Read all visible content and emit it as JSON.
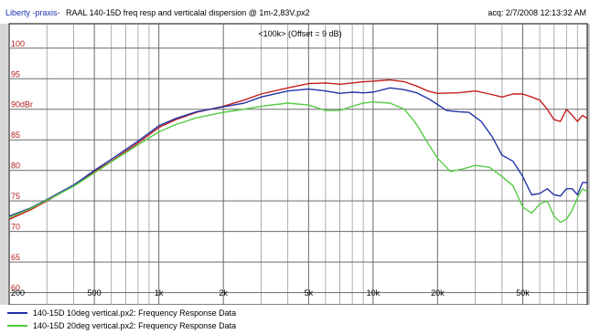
{
  "header": {
    "app_name": "Liberty -praxis-",
    "file_title": "RAAL 140-15D freq resp and verticalal dispersion @ 1m-2,83V.px2",
    "acq_time": "acq: 2/7/2008 12:13:32 AM"
  },
  "chart_data": {
    "type": "line",
    "title": "",
    "annotation": "<100k> (Offset = 9 dB)",
    "xlabel": "",
    "ylabel": "dBr",
    "x_scale": "log",
    "xlim": [
      200,
      100000
    ],
    "ylim": [
      58,
      104
    ],
    "grid": true,
    "x_ticks": [
      {
        "value": 200,
        "label": "200"
      },
      {
        "value": 500,
        "label": "500"
      },
      {
        "value": 1000,
        "label": "1k"
      },
      {
        "value": 2000,
        "label": "2k"
      },
      {
        "value": 5000,
        "label": "5k"
      },
      {
        "value": 10000,
        "label": "10k"
      },
      {
        "value": 20000,
        "label": "20k"
      },
      {
        "value": 50000,
        "label": "50k"
      }
    ],
    "y_ticks": [
      {
        "value": 100,
        "label": "100"
      },
      {
        "value": 95,
        "label": "95"
      },
      {
        "value": 90,
        "label": "90dBr"
      },
      {
        "value": 85,
        "label": "85"
      },
      {
        "value": 80,
        "label": "80"
      },
      {
        "value": 75,
        "label": "75"
      },
      {
        "value": 70,
        "label": "70"
      },
      {
        "value": 65,
        "label": "65"
      },
      {
        "value": 60,
        "label": "60"
      }
    ],
    "series": [
      {
        "color": "#c41d1d",
        "points": [
          [
            200,
            72
          ],
          [
            250,
            73.5
          ],
          [
            300,
            75
          ],
          [
            400,
            77.5
          ],
          [
            500,
            79.8
          ],
          [
            600,
            81.5
          ],
          [
            800,
            84.5
          ],
          [
            1000,
            87
          ],
          [
            1200,
            88.3
          ],
          [
            1500,
            89.5
          ],
          [
            2000,
            90.5
          ],
          [
            2500,
            91.5
          ],
          [
            3000,
            92.5
          ],
          [
            4000,
            93.5
          ],
          [
            5000,
            94.2
          ],
          [
            6000,
            94.3
          ],
          [
            7000,
            94.1
          ],
          [
            8000,
            94.3
          ],
          [
            9000,
            94.5
          ],
          [
            10000,
            94.6
          ],
          [
            12000,
            94.8
          ],
          [
            14000,
            94.5
          ],
          [
            16000,
            93.8
          ],
          [
            18000,
            93
          ],
          [
            20000,
            92.6
          ],
          [
            25000,
            92.7
          ],
          [
            30000,
            93
          ],
          [
            35000,
            92.5
          ],
          [
            40000,
            92
          ],
          [
            45000,
            92.5
          ],
          [
            50000,
            92.5
          ],
          [
            55000,
            92
          ],
          [
            60000,
            91.5
          ],
          [
            65000,
            90
          ],
          [
            70000,
            88.3
          ],
          [
            75000,
            88
          ],
          [
            80000,
            90
          ],
          [
            85000,
            89
          ],
          [
            90000,
            88
          ],
          [
            95000,
            89
          ],
          [
            100000,
            88.5
          ]
        ]
      },
      {
        "color": "#2233a8",
        "points": [
          [
            200,
            72.5
          ],
          [
            250,
            73.8
          ],
          [
            300,
            75.2
          ],
          [
            400,
            77.6
          ],
          [
            500,
            80
          ],
          [
            600,
            81.8
          ],
          [
            800,
            84.8
          ],
          [
            1000,
            87.3
          ],
          [
            1200,
            88.5
          ],
          [
            1500,
            89.6
          ],
          [
            2000,
            90.4
          ],
          [
            2500,
            91
          ],
          [
            3000,
            92
          ],
          [
            4000,
            93
          ],
          [
            5000,
            93.3
          ],
          [
            6000,
            93
          ],
          [
            7000,
            92.6
          ],
          [
            8000,
            92.8
          ],
          [
            9000,
            92.7
          ],
          [
            10000,
            92.8
          ],
          [
            12000,
            93.5
          ],
          [
            14000,
            93.2
          ],
          [
            16000,
            92.7
          ],
          [
            18000,
            91.8
          ],
          [
            20000,
            90.8
          ],
          [
            22000,
            89.8
          ],
          [
            25000,
            89.6
          ],
          [
            28000,
            89.5
          ],
          [
            32000,
            88
          ],
          [
            36000,
            85.5
          ],
          [
            40000,
            82.5
          ],
          [
            45000,
            81.5
          ],
          [
            50000,
            79
          ],
          [
            55000,
            76
          ],
          [
            60000,
            76.2
          ],
          [
            65000,
            77
          ],
          [
            70000,
            76
          ],
          [
            75000,
            75.8
          ],
          [
            80000,
            77
          ],
          [
            85000,
            77
          ],
          [
            90000,
            76
          ],
          [
            95000,
            78
          ],
          [
            100000,
            78
          ]
        ]
      },
      {
        "color": "#55cc44",
        "points": [
          [
            200,
            72.3
          ],
          [
            250,
            73.7
          ],
          [
            300,
            75.1
          ],
          [
            400,
            77.4
          ],
          [
            500,
            79.6
          ],
          [
            600,
            81.4
          ],
          [
            800,
            84.2
          ],
          [
            1000,
            86.3
          ],
          [
            1200,
            87.5
          ],
          [
            1500,
            88.6
          ],
          [
            2000,
            89.5
          ],
          [
            2500,
            90
          ],
          [
            3000,
            90.5
          ],
          [
            4000,
            91
          ],
          [
            5000,
            90.7
          ],
          [
            6000,
            89.8
          ],
          [
            7000,
            89.8
          ],
          [
            8000,
            90.5
          ],
          [
            9000,
            91
          ],
          [
            10000,
            91.2
          ],
          [
            12000,
            91
          ],
          [
            14000,
            90
          ],
          [
            16000,
            87.5
          ],
          [
            18000,
            84.5
          ],
          [
            20000,
            82
          ],
          [
            23000,
            79.8
          ],
          [
            26000,
            80.2
          ],
          [
            30000,
            80.8
          ],
          [
            35000,
            80.5
          ],
          [
            40000,
            79
          ],
          [
            45000,
            77.5
          ],
          [
            50000,
            74
          ],
          [
            55000,
            73
          ],
          [
            60000,
            74.5
          ],
          [
            65000,
            75
          ],
          [
            70000,
            72.5
          ],
          [
            75000,
            71.5
          ],
          [
            80000,
            72
          ],
          [
            85000,
            73.5
          ],
          [
            90000,
            75.5
          ],
          [
            95000,
            77
          ],
          [
            100000,
            76.5
          ]
        ]
      }
    ]
  },
  "legend": {
    "items": [
      {
        "label": "140-15D 10deg vertical.px2:  Frequency Response Data",
        "color": "#2233a8"
      },
      {
        "label": "140-15D 20deg vertical.px2:  Frequency Response Data",
        "color": "#55cc44"
      }
    ]
  }
}
